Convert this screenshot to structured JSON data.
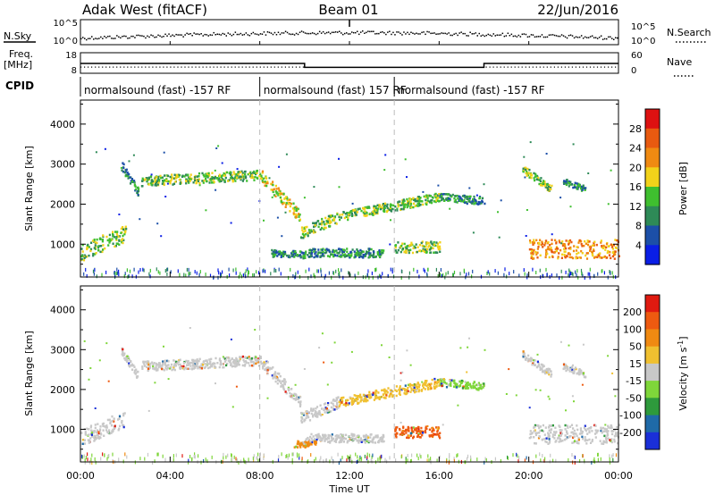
{
  "header": {
    "radar": "Adak West (fitACF)",
    "beam": "Beam 01",
    "date": "22/Jun/2016"
  },
  "summary": {
    "nsky_label": "N.Sky",
    "nsearch_label": "N.Search",
    "noise_ticks_left": [
      "10^5",
      "10^0"
    ],
    "noise_ticks_right": [
      "10^5",
      "10^0"
    ],
    "freq_label_1": "Freq.",
    "freq_label_2": "[MHz]",
    "freq_ticks": [
      "18",
      "8"
    ],
    "nave_label": "Nave",
    "nave_ticks": [
      "60",
      "0"
    ],
    "cpid_label": "CPID",
    "cpid_segments": [
      {
        "label": "normalsound (fast) -157 RF",
        "start": 0,
        "end": 8
      },
      {
        "label": "normalsound (fast) 157 RF",
        "start": 8,
        "end": 14
      },
      {
        "label": "normalsound (fast) -157 RF",
        "start": 14,
        "end": 24
      }
    ],
    "freq_series": {
      "x": [
        0,
        10,
        10,
        18,
        18,
        24
      ],
      "y": [
        13,
        13,
        11,
        11,
        13,
        13
      ]
    }
  },
  "chart_data": [
    {
      "type": "heatmap",
      "name": "power",
      "ylabel": "Slant Range [km]",
      "yticks": [
        "1000",
        "2000",
        "3000",
        "4000"
      ],
      "ylim": [
        180,
        4600
      ],
      "xlim": [
        0,
        24
      ],
      "colorbar_label": "Power [dB]",
      "colorbar_ticks": [
        "4",
        "8",
        "12",
        "16",
        "20",
        "24",
        "28"
      ],
      "colors": [
        "#0a1ee6",
        "#1c4fa8",
        "#2e8a57",
        "#3fbf2f",
        "#f2d21a",
        "#f08a12",
        "#e85a10",
        "#dd1111"
      ],
      "bands": [
        {
          "x": [
            0,
            2.0
          ],
          "y": [
            800,
            1300
          ],
          "thickness": 420,
          "level": 3
        },
        {
          "x": [
            1.8,
            2.6
          ],
          "y": [
            3000,
            2300
          ],
          "thickness": 240,
          "level": 2
        },
        {
          "x": [
            2.7,
            8.0
          ],
          "y": [
            2600,
            2750
          ],
          "thickness": 250,
          "level": 3
        },
        {
          "x": [
            8.0,
            9.8
          ],
          "y": [
            2750,
            1700
          ],
          "thickness": 300,
          "level": 4
        },
        {
          "x": [
            9.8,
            11.5
          ],
          "y": [
            1300,
            1700
          ],
          "thickness": 280,
          "level": 3
        },
        {
          "x": [
            11.5,
            16.0
          ],
          "y": [
            1700,
            2200
          ],
          "thickness": 240,
          "level": 3
        },
        {
          "x": [
            16.0,
            18.0
          ],
          "y": [
            2200,
            2100
          ],
          "thickness": 200,
          "level": 2
        },
        {
          "x": [
            10.0,
            13.5
          ],
          "y": [
            800,
            800
          ],
          "thickness": 220,
          "level": 2
        },
        {
          "x": [
            14.0,
            16.0
          ],
          "y": [
            950,
            950
          ],
          "thickness": 280,
          "level": 3
        },
        {
          "x": [
            20.0,
            24.0
          ],
          "y": [
            900,
            900
          ],
          "thickness": 480,
          "level": 5
        },
        {
          "x": [
            19.7,
            21.0
          ],
          "y": [
            2900,
            2400
          ],
          "thickness": 200,
          "level": 3
        },
        {
          "x": [
            21.5,
            22.5
          ],
          "y": [
            2600,
            2400
          ],
          "thickness": 160,
          "level": 2
        },
        {
          "x": [
            8.5,
            10.0
          ],
          "y": [
            800,
            750
          ],
          "thickness": 180,
          "level": 2
        }
      ]
    },
    {
      "type": "heatmap",
      "name": "velocity",
      "ylabel": "Slant Range [km]",
      "yticks": [
        "1000",
        "2000",
        "3000",
        "4000"
      ],
      "ylim": [
        180,
        4600
      ],
      "xlim": [
        0,
        24
      ],
      "xlabel": "Time UT",
      "xticks": [
        "00:00",
        "04:00",
        "08:00",
        "12:00",
        "16:00",
        "20:00",
        "00:00"
      ],
      "colorbar_label": "Velocity [m s-1]",
      "colorbar_ticks": [
        "200",
        "100",
        "50",
        "15",
        "-15",
        "-50",
        "-100",
        "-200"
      ],
      "colors": [
        "#1a2fd8",
        "#1f6aa8",
        "#2e9a3c",
        "#7fd63a",
        "#c8c8c8",
        "#f0c030",
        "#f08a12",
        "#ee5a10",
        "#e01a10"
      ],
      "bands": [
        {
          "x": [
            0,
            2.0
          ],
          "y": [
            800,
            1300
          ],
          "thickness": 420,
          "color": 4
        },
        {
          "x": [
            1.8,
            2.6
          ],
          "y": [
            3000,
            2300
          ],
          "thickness": 240,
          "color": 4
        },
        {
          "x": [
            2.7,
            8.0
          ],
          "y": [
            2600,
            2750
          ],
          "thickness": 250,
          "color": 4
        },
        {
          "x": [
            8.0,
            9.8
          ],
          "y": [
            2750,
            1700
          ],
          "thickness": 300,
          "color": 4
        },
        {
          "x": [
            9.8,
            11.5
          ],
          "y": [
            1300,
            1700
          ],
          "thickness": 280,
          "color": 4
        },
        {
          "x": [
            11.5,
            16.0
          ],
          "y": [
            1700,
            2200
          ],
          "thickness": 240,
          "color": 5
        },
        {
          "x": [
            16.0,
            18.0
          ],
          "y": [
            2200,
            2100
          ],
          "thickness": 200,
          "color": 3
        },
        {
          "x": [
            10.0,
            13.5
          ],
          "y": [
            800,
            800
          ],
          "thickness": 220,
          "color": 4
        },
        {
          "x": [
            14.0,
            16.0
          ],
          "y": [
            950,
            950
          ],
          "thickness": 280,
          "color": 7
        },
        {
          "x": [
            20.0,
            24.0
          ],
          "y": [
            900,
            900
          ],
          "thickness": 480,
          "color": 4
        },
        {
          "x": [
            19.7,
            21.0
          ],
          "y": [
            2900,
            2400
          ],
          "thickness": 200,
          "color": 4
        },
        {
          "x": [
            21.5,
            22.5
          ],
          "y": [
            2600,
            2400
          ],
          "thickness": 160,
          "color": 4
        },
        {
          "x": [
            9.5,
            10.5
          ],
          "y": [
            650,
            650
          ],
          "thickness": 160,
          "color": 6
        }
      ]
    }
  ]
}
